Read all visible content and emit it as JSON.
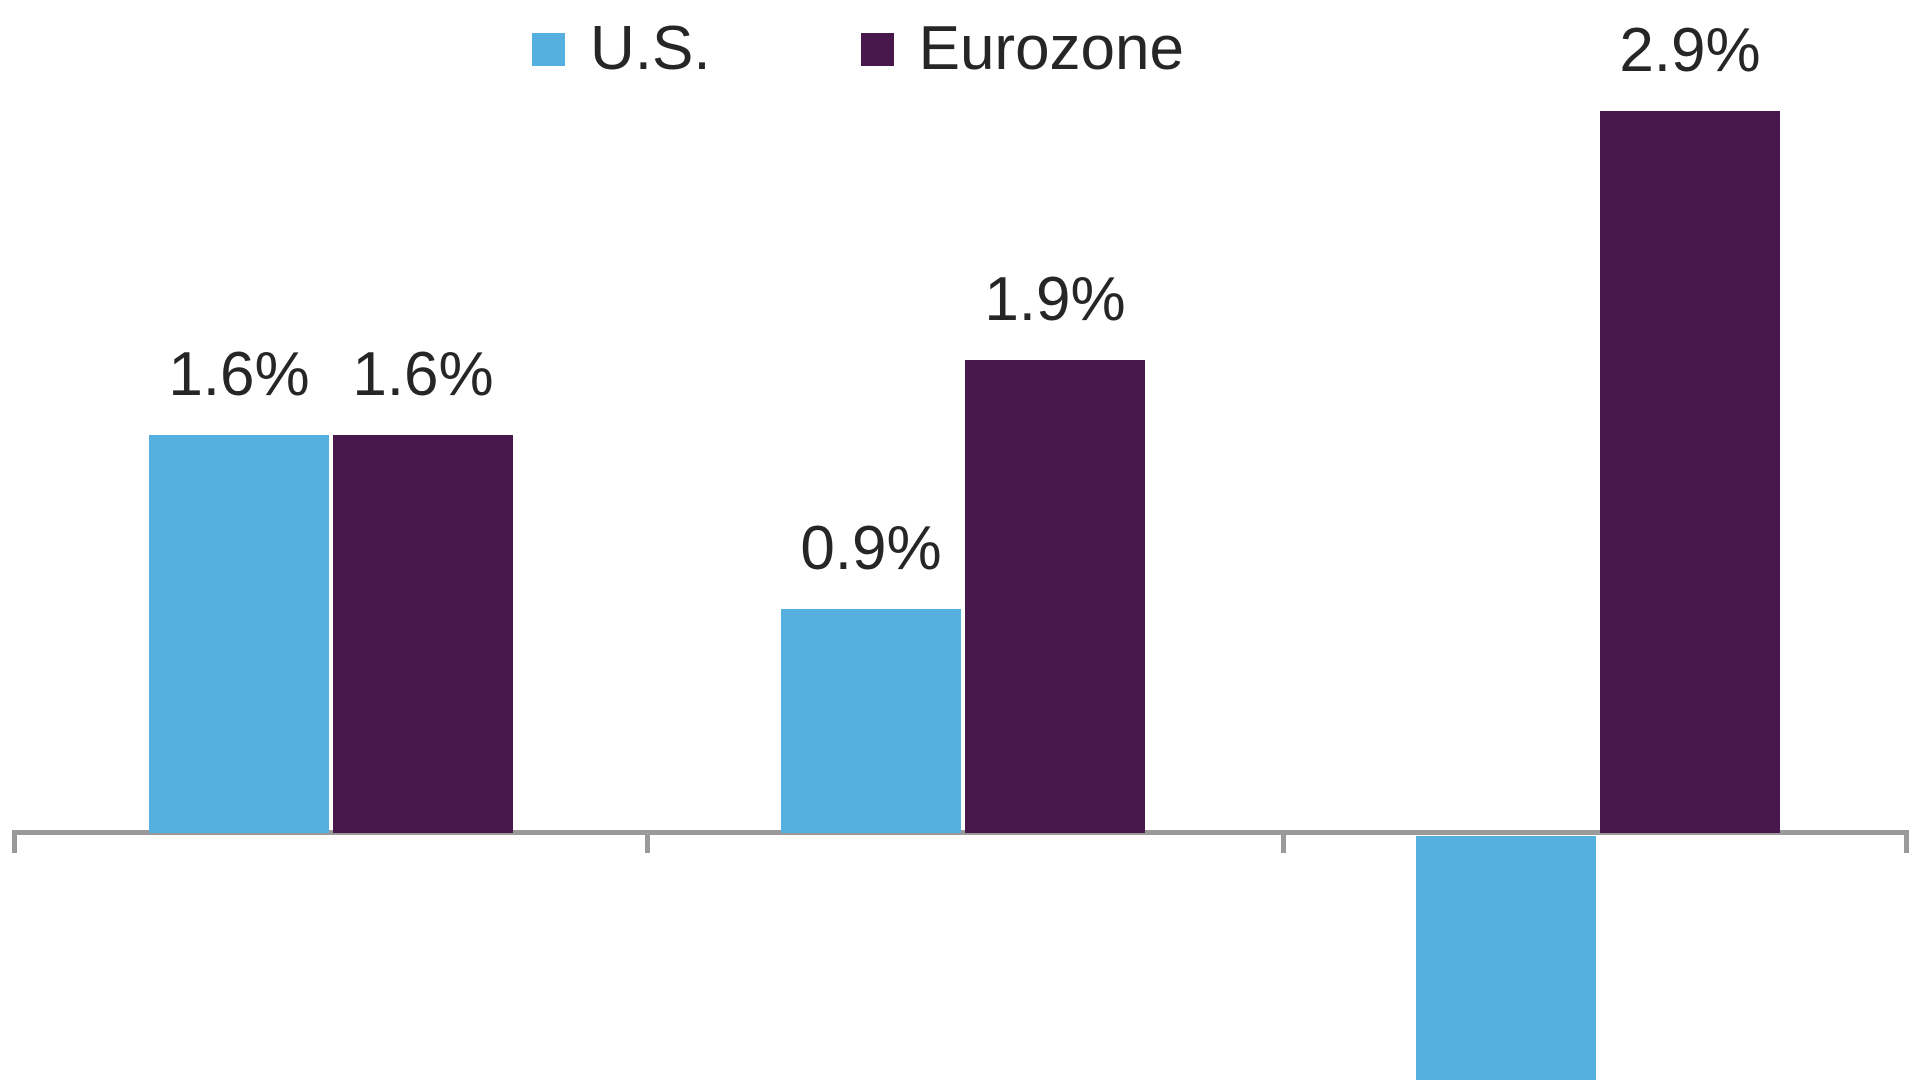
{
  "legend": {
    "position": "top",
    "items": [
      {
        "label": "U.S.",
        "color": "#55B0E0"
      },
      {
        "label": "Eurozone",
        "color": "#48184D"
      }
    ]
  },
  "chart_data": {
    "type": "bar",
    "orientation": "vertical",
    "categories": [
      "group-1",
      "group-2",
      "group-3"
    ],
    "category_axis_labels_visible": false,
    "value_axis_labels_visible": false,
    "gridlines": false,
    "legend_position": "top",
    "data_label_color": "#262626",
    "baseline_color": "#9A9A9A",
    "series": [
      {
        "key": "us",
        "name": "U.S.",
        "color": "#55B0E0",
        "bars": [
          {
            "value": 1.6,
            "value_label": "1.6%"
          },
          {
            "value": 0.9,
            "value_label": "0.9%"
          },
          {
            "value": null,
            "value_label": null,
            "clipped": true,
            "direction": "negative",
            "visible_extent_pct": -1.0
          }
        ]
      },
      {
        "key": "eurozone",
        "name": "Eurozone",
        "color": "#48184D",
        "bars": [
          {
            "value": 1.6,
            "value_label": "1.6%"
          },
          {
            "value": 1.9,
            "value_label": "1.9%"
          },
          {
            "value": 2.9,
            "value_label": "2.9%"
          }
        ]
      }
    ],
    "notes": "The third U.S. bar extends below the zero baseline and is cut off at the bottom edge of the image; its value label is not visible. No chart title, axis titles, or tick labels are visible."
  }
}
